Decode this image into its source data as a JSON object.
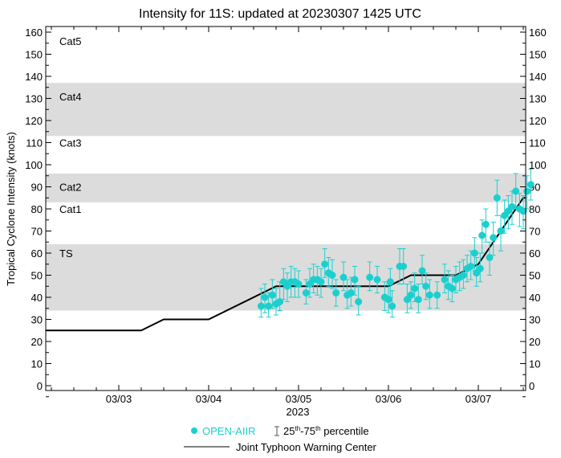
{
  "chart_data": {
    "type": "scatter",
    "title": "Intensity for 11S: updated at 20230307 1425 UTC",
    "ylabel": "Tropical Cyclone Intensity (knots)",
    "xlabel": "2023",
    "ylim": [
      0,
      160
    ],
    "yticks": [
      0,
      10,
      20,
      30,
      40,
      50,
      60,
      70,
      80,
      90,
      100,
      110,
      120,
      130,
      140,
      150,
      160
    ],
    "xticks": [
      "03/03",
      "03/04",
      "03/05",
      "03/06",
      "03/07"
    ],
    "xlim": [
      "03/02 04:30",
      "03/07 12:40"
    ],
    "grid": false,
    "categories": [
      {
        "label": "TS",
        "lo": 34,
        "hi": 64,
        "shaded": true,
        "label_at": 60
      },
      {
        "label": "Cat1",
        "lo": 64,
        "hi": 83,
        "shaded": false,
        "label_at": 80
      },
      {
        "label": "Cat2",
        "lo": 83,
        "hi": 96,
        "shaded": true,
        "label_at": 90
      },
      {
        "label": "Cat3",
        "lo": 96,
        "hi": 113,
        "shaded": false,
        "label_at": 110
      },
      {
        "label": "Cat4",
        "lo": 113,
        "hi": 137,
        "shaded": true,
        "label_at": 131
      },
      {
        "label": "Cat5",
        "lo": 137,
        "hi": 160,
        "shaded": false,
        "label_at": 156
      }
    ],
    "colors": {
      "openaiir": "#1ccfcf",
      "jtwc": "#000000",
      "band": "#dcdcdc"
    },
    "legend": {
      "position": "bottom",
      "openaiir": "OPEN-AIIR",
      "percentile_prefix": "25",
      "percentile_sup1": "th",
      "percentile_mid": "-75",
      "percentile_sup2": "th",
      "percentile_suffix": " percentile",
      "jtwc": "Joint Typhoon Warning Center"
    },
    "series": [
      {
        "name": "Joint Typhoon Warning Center",
        "type": "line",
        "points": [
          [
            "03/02 04:30",
            25
          ],
          [
            "03/03 06:00",
            25
          ],
          [
            "03/03 12:00",
            30
          ],
          [
            "03/04 00:00",
            30
          ],
          [
            "03/04 18:00",
            45
          ],
          [
            "03/06 00:00",
            45
          ],
          [
            "03/06 06:00",
            50
          ],
          [
            "03/06 18:00",
            50
          ],
          [
            "03/07 00:00",
            55
          ],
          [
            "03/07 12:00",
            85
          ],
          [
            "03/07 12:40",
            85
          ]
        ]
      },
      {
        "name": "OPEN-AIIR",
        "type": "scatter",
        "fields": [
          "time",
          "value",
          "p25",
          "p75"
        ],
        "points": [
          [
            "03/04 14:00",
            36,
            31,
            44
          ],
          [
            "03/04 15:00",
            40,
            33,
            46
          ],
          [
            "03/04 16:00",
            36,
            31,
            42
          ],
          [
            "03/04 17:00",
            41,
            35,
            48
          ],
          [
            "03/04 18:00",
            37,
            32,
            44
          ],
          [
            "03/04 19:00",
            38,
            34,
            47
          ],
          [
            "03/04 20:00",
            47,
            39,
            53
          ],
          [
            "03/04 21:00",
            45,
            38,
            51
          ],
          [
            "03/04 22:00",
            47,
            40,
            54
          ],
          [
            "03/04 23:00",
            47,
            40,
            53
          ],
          [
            "03/05 00:00",
            46,
            40,
            52
          ],
          [
            "03/05 02:00",
            42,
            37,
            48
          ],
          [
            "03/05 03:00",
            46,
            40,
            53
          ],
          [
            "03/05 04:00",
            48,
            42,
            55
          ],
          [
            "03/05 05:00",
            48,
            41,
            54
          ],
          [
            "03/05 06:00",
            47,
            40,
            53
          ],
          [
            "03/05 07:00",
            55,
            49,
            62
          ],
          [
            "03/05 08:00",
            51,
            45,
            58
          ],
          [
            "03/05 09:00",
            50,
            44,
            57
          ],
          [
            "03/05 10:00",
            42,
            36,
            48
          ],
          [
            "03/05 12:00",
            49,
            43,
            56
          ],
          [
            "03/05 13:00",
            41,
            35,
            48
          ],
          [
            "03/05 14:00",
            42,
            36,
            49
          ],
          [
            "03/05 15:00",
            48,
            41,
            54
          ],
          [
            "03/05 16:00",
            38,
            32,
            45
          ],
          [
            "03/05 19:00",
            49,
            43,
            56
          ],
          [
            "03/05 21:00",
            48,
            42,
            54
          ],
          [
            "03/05 23:00",
            40,
            34,
            47
          ],
          [
            "03/06 00:00",
            39,
            33,
            46
          ],
          [
            "03/06 00:30",
            47,
            40,
            53
          ],
          [
            "03/06 01:00",
            36,
            31,
            43
          ],
          [
            "03/06 03:00",
            54,
            46,
            62
          ],
          [
            "03/06 04:00",
            54,
            46,
            62
          ],
          [
            "03/06 05:00",
            39,
            33,
            46
          ],
          [
            "03/06 06:00",
            41,
            35,
            47
          ],
          [
            "03/06 07:00",
            44,
            38,
            51
          ],
          [
            "03/06 08:00",
            39,
            33,
            46
          ],
          [
            "03/06 09:00",
            52,
            46,
            59
          ],
          [
            "03/06 10:00",
            45,
            39,
            51
          ],
          [
            "03/06 11:00",
            41,
            35,
            48
          ],
          [
            "03/06 13:00",
            41,
            35,
            47
          ],
          [
            "03/06 15:00",
            48,
            42,
            55
          ],
          [
            "03/06 16:00",
            45,
            39,
            52
          ],
          [
            "03/06 17:00",
            44,
            38,
            50
          ],
          [
            "03/06 18:00",
            48,
            42,
            54
          ],
          [
            "03/06 19:00",
            49,
            43,
            56
          ],
          [
            "03/06 20:00",
            50,
            44,
            57
          ],
          [
            "03/06 21:00",
            53,
            47,
            59
          ],
          [
            "03/06 22:00",
            54,
            48,
            61
          ],
          [
            "03/06 23:00",
            60,
            52,
            67
          ],
          [
            "03/06 23:30",
            51,
            45,
            58
          ],
          [
            "03/07 00:30",
            53,
            47,
            60
          ],
          [
            "03/07 01:00",
            68,
            60,
            75
          ],
          [
            "03/07 02:00",
            73,
            65,
            80
          ],
          [
            "03/07 03:00",
            58,
            50,
            65
          ],
          [
            "03/07 04:00",
            67,
            59,
            74
          ],
          [
            "03/07 05:00",
            85,
            77,
            93
          ],
          [
            "03/07 06:00",
            70,
            61,
            77
          ],
          [
            "03/07 07:00",
            77,
            69,
            84
          ],
          [
            "03/07 08:00",
            79,
            71,
            86
          ],
          [
            "03/07 09:00",
            81,
            73,
            88
          ],
          [
            "03/07 10:00",
            88,
            80,
            96
          ],
          [
            "03/07 11:00",
            80,
            72,
            87
          ],
          [
            "03/07 12:00",
            79,
            71,
            86
          ],
          [
            "03/07 13:00",
            88,
            80,
            95
          ],
          [
            "03/07 14:00",
            91,
            84,
            98
          ]
        ]
      }
    ]
  }
}
